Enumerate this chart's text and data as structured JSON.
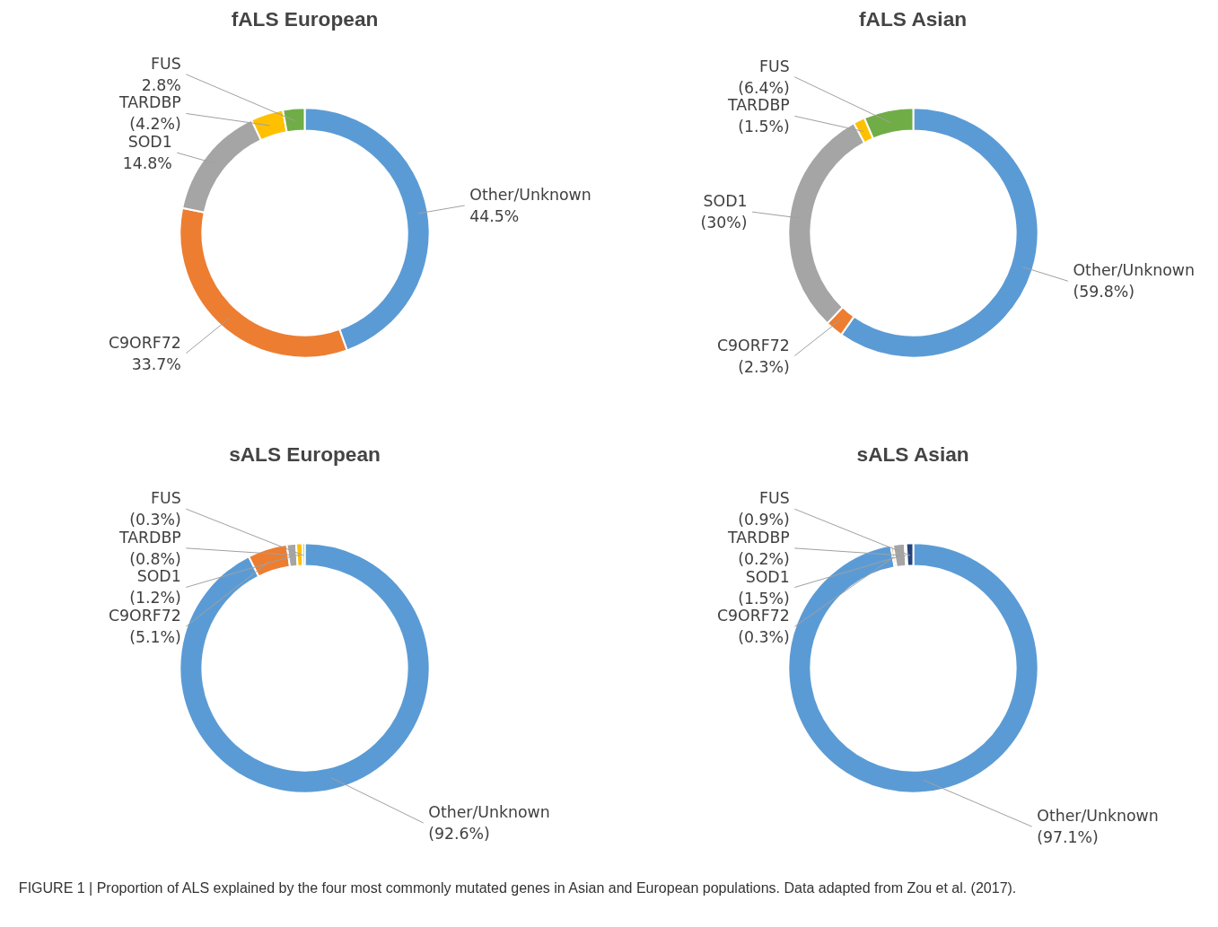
{
  "chart_data": [
    {
      "type": "donut",
      "title": "fALS European",
      "categories": [
        "Other/Unknown",
        "C9ORF72",
        "SOD1",
        "TARDBP",
        "FUS"
      ],
      "values": [
        44.5,
        33.7,
        14.8,
        4.2,
        2.8
      ],
      "value_labels": [
        "44.5%",
        "33.7%",
        "14.8%",
        "(4.2%)",
        "2.8%"
      ],
      "colors": [
        "#5b9bd5",
        "#ed7d31",
        "#a5a5a5",
        "#ffc000",
        "#70ad47"
      ]
    },
    {
      "type": "donut",
      "title": "fALS Asian",
      "categories": [
        "Other/Unknown",
        "C9ORF72",
        "SOD1",
        "TARDBP",
        "FUS"
      ],
      "values": [
        59.8,
        2.3,
        30,
        1.5,
        6.4
      ],
      "value_labels": [
        "(59.8%)",
        "(2.3%)",
        "(30%)",
        "(1.5%)",
        "(6.4%)"
      ],
      "colors": [
        "#5b9bd5",
        "#ed7d31",
        "#a5a5a5",
        "#ffc000",
        "#70ad47"
      ]
    },
    {
      "type": "donut",
      "title": "sALS European",
      "categories": [
        "Other/Unknown",
        "C9ORF72",
        "SOD1",
        "TARDBP",
        "FUS"
      ],
      "values": [
        92.6,
        5.1,
        1.2,
        0.8,
        0.3
      ],
      "value_labels": [
        "(92.6%)",
        "(5.1%)",
        "(1.2%)",
        "(0.8%)",
        "(0.3%)"
      ],
      "colors": [
        "#5b9bd5",
        "#ed7d31",
        "#a5a5a5",
        "#ffc000",
        "#70ad47"
      ]
    },
    {
      "type": "donut",
      "title": "sALS Asian",
      "categories": [
        "Other/Unknown",
        "C9ORF72",
        "SOD1",
        "TARDBP",
        "FUS"
      ],
      "values": [
        97.1,
        0.3,
        1.5,
        0.2,
        0.9
      ],
      "value_labels": [
        "(97.1%)",
        "(0.3%)",
        "(1.5%)",
        "(0.2%)",
        "(0.9%)"
      ],
      "colors": [
        "#5b9bd5",
        "#ed7d31",
        "#a5a5a5",
        "#ffc000",
        "#264478"
      ],
      "annotations": [
        "FIGURE 1 | Proportion of ALS explained by the four most commonly mutated genes in Asian and European populations. Data adapted from Zou et al. (2017)."
      ]
    }
  ]
}
